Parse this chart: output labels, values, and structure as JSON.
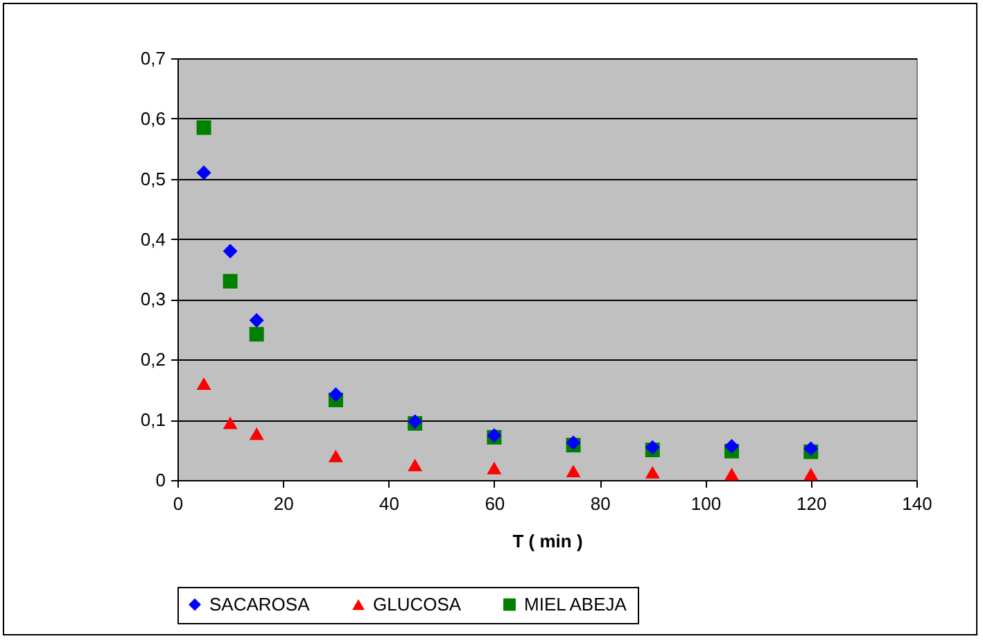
{
  "chart_data": {
    "type": "scatter",
    "xlabel": "T ( min )",
    "x": [
      5,
      10,
      15,
      30,
      45,
      60,
      75,
      90,
      105,
      120
    ],
    "series": [
      {
        "name": "SACAROSA",
        "color": "#0000ff",
        "marker": "diamond",
        "values": [
          0.51,
          0.38,
          0.265,
          0.142,
          0.097,
          0.074,
          0.062,
          0.054,
          0.056,
          0.052
        ]
      },
      {
        "name": "GLUCOSA",
        "color": "#ff0000",
        "marker": "triangle",
        "values": [
          0.16,
          0.095,
          0.077,
          0.04,
          0.025,
          0.02,
          0.015,
          0.013,
          0.01,
          0.01
        ]
      },
      {
        "name": "MIEL ABEJA",
        "color": "#008000",
        "marker": "square",
        "values": [
          0.585,
          0.33,
          0.242,
          0.133,
          0.094,
          0.071,
          0.058,
          0.05,
          0.048,
          0.047
        ]
      }
    ],
    "xlim": [
      0,
      140
    ],
    "xticks": [
      0,
      20,
      40,
      60,
      80,
      100,
      120,
      140
    ],
    "ylim": [
      0,
      0.7
    ],
    "yticks": [
      0,
      {
        "value": 0.1,
        "label": "0,1"
      },
      {
        "value": 0.2,
        "label": "0,2"
      },
      {
        "value": 0.3,
        "label": "0,3"
      },
      {
        "value": 0.4,
        "label": "0,4"
      },
      {
        "value": 0.5,
        "label": "0,5"
      },
      {
        "value": 0.6,
        "label": "0,6"
      },
      {
        "value": 0.7,
        "label": "0,7"
      }
    ],
    "grid": "y",
    "legend": "bottom"
  }
}
